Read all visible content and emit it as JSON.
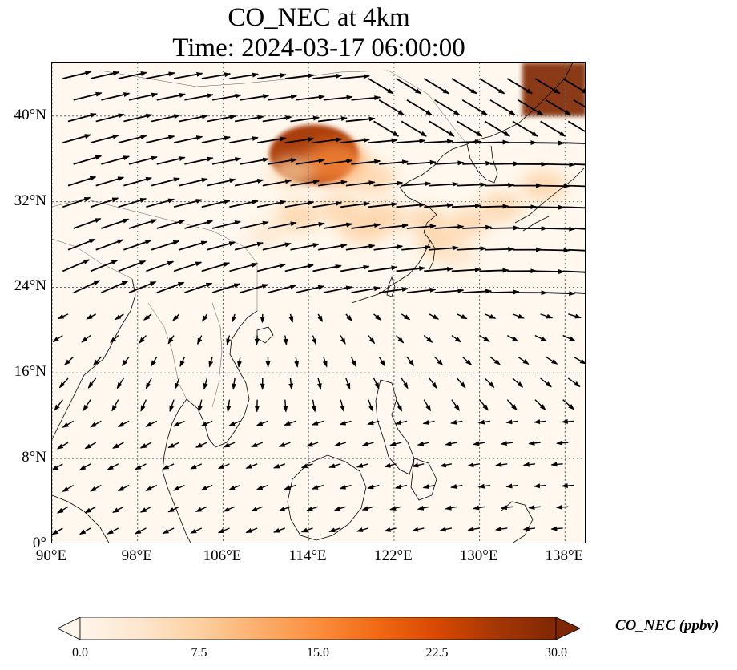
{
  "title_line1": "CO_NEC at 4km",
  "title_line2": "Time: 2024-03-17 06:00:00",
  "map": {
    "lon_range": [
      90,
      140
    ],
    "lat_range": [
      0,
      45
    ],
    "lat_ticks": [
      {
        "value": 40,
        "label": "40°N"
      },
      {
        "value": 32,
        "label": "32°N"
      },
      {
        "value": 24,
        "label": "24°N"
      },
      {
        "value": 16,
        "label": "16°N"
      },
      {
        "value": 8,
        "label": "8°N"
      },
      {
        "value": 0,
        "label": "0°"
      }
    ],
    "lon_ticks": [
      {
        "value": 90,
        "label": "90°E"
      },
      {
        "value": 98,
        "label": "98°E"
      },
      {
        "value": 106,
        "label": "106°E"
      },
      {
        "value": 114,
        "label": "114°E"
      },
      {
        "value": 122,
        "label": "122°E"
      },
      {
        "value": 130,
        "label": "130°E"
      },
      {
        "value": 138,
        "label": "138°E"
      }
    ],
    "hotspots": [
      {
        "lon": 114.5,
        "lat": 36.4,
        "value": 28
      },
      {
        "lon": 116.5,
        "lat": 35.6,
        "value": 16
      },
      {
        "lon": 112.5,
        "lat": 34.8,
        "value": 7
      },
      {
        "lon": 120,
        "lat": 34.2,
        "value": 8
      },
      {
        "lon": 113,
        "lat": 30.6,
        "value": 8
      },
      {
        "lon": 117,
        "lat": 31.2,
        "value": 7
      },
      {
        "lon": 119,
        "lat": 29.5,
        "value": 8
      },
      {
        "lon": 121,
        "lat": 30.5,
        "value": 8
      },
      {
        "lon": 125,
        "lat": 30.2,
        "value": 6
      },
      {
        "lon": 126.5,
        "lat": 28.2,
        "value": 9
      },
      {
        "lon": 129,
        "lat": 30,
        "value": 6
      },
      {
        "lon": 132,
        "lat": 31.5,
        "value": 7
      },
      {
        "lon": 136,
        "lat": 33.5,
        "value": 8
      },
      {
        "lon": 128,
        "lat": 27,
        "value": 5
      },
      {
        "lon": 110,
        "lat": 29,
        "value": 5
      }
    ],
    "top_right_max": {
      "lon_from": 134,
      "lat_from": 40,
      "value": 30
    }
  },
  "colorbar": {
    "label": "CO_NEC (ppbv)",
    "ticks": [
      "0.0",
      "7.5",
      "15.0",
      "22.5",
      "30.0"
    ],
    "range": [
      0,
      30
    ],
    "colors": [
      "#fff5eb",
      "#fee6ce",
      "#fdd0a2",
      "#fdae6b",
      "#fd8d3c",
      "#f16913",
      "#d94801",
      "#a63603",
      "#7f2704"
    ]
  }
}
